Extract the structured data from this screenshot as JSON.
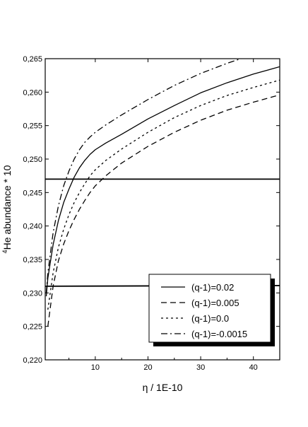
{
  "chart_data": {
    "type": "line",
    "xlabel": "η / 1E-10",
    "ylabel_sup": "4",
    "ylabel": "He abundance * 10",
    "xlim": [
      0.5,
      45
    ],
    "ylim": [
      0.22,
      0.265
    ],
    "xticks": [
      10,
      20,
      30,
      40
    ],
    "xtick_labels": [
      "10",
      "20",
      "30",
      "40"
    ],
    "yticks": [
      0.22,
      0.225,
      0.23,
      0.235,
      0.24,
      0.245,
      0.25,
      0.255,
      0.26,
      0.265
    ],
    "ytick_labels": [
      "0,220",
      "0,225",
      "0,230",
      "0,235",
      "0,240",
      "0,245",
      "0,250",
      "0,255",
      "0,260",
      "0,265"
    ],
    "grid": false,
    "legend_position": "bottom-right",
    "series": [
      {
        "name": "(q-1)=0.02",
        "style": "solid",
        "x": [
          0.7,
          1,
          2,
          3,
          4,
          5,
          6,
          7,
          8,
          9,
          10,
          12,
          15,
          20,
          25,
          30,
          35,
          40,
          45
        ],
        "y": [
          0.2295,
          0.2322,
          0.2372,
          0.2408,
          0.2435,
          0.2455,
          0.2473,
          0.2487,
          0.2498,
          0.2507,
          0.2514,
          0.2524,
          0.2537,
          0.256,
          0.258,
          0.2599,
          0.2614,
          0.2627,
          0.2638
        ]
      },
      {
        "name": "(q-1)=0.005",
        "style": "dashed",
        "x": [
          1,
          2,
          3,
          4,
          5,
          6,
          7,
          8,
          9,
          10,
          12,
          15,
          20,
          25,
          30,
          35,
          40,
          45
        ],
        "y": [
          0.225,
          0.231,
          0.2348,
          0.2373,
          0.2393,
          0.241,
          0.2425,
          0.2438,
          0.245,
          0.246,
          0.2475,
          0.2494,
          0.2519,
          0.254,
          0.2558,
          0.2573,
          0.2585,
          0.2596
        ]
      },
      {
        "name": "(q-1)=0.0",
        "style": "dotted",
        "x": [
          1,
          2,
          3,
          4,
          5,
          6,
          7,
          8,
          9,
          10,
          12,
          15,
          20,
          25,
          30,
          35,
          40,
          45
        ],
        "y": [
          0.2275,
          0.233,
          0.2368,
          0.2395,
          0.2417,
          0.2435,
          0.245,
          0.2463,
          0.2475,
          0.2484,
          0.2498,
          0.2515,
          0.254,
          0.2562,
          0.258,
          0.2595,
          0.2607,
          0.2618
        ]
      },
      {
        "name": "(q-1)=-0.0015",
        "style": "dashdot",
        "x": [
          0.7,
          1,
          2,
          3,
          4,
          5,
          6,
          7,
          8,
          9,
          10,
          12,
          15,
          20,
          25,
          30,
          35,
          38,
          40
        ],
        "y": [
          0.23,
          0.233,
          0.239,
          0.243,
          0.246,
          0.2482,
          0.25,
          0.2514,
          0.2525,
          0.2533,
          0.254,
          0.2551,
          0.2566,
          0.2589,
          0.261,
          0.2628,
          0.2643,
          0.2651,
          0.2655
        ]
      },
      {
        "name": "",
        "style": "solid-thick",
        "x": [
          0.5,
          45
        ],
        "y": [
          0.247,
          0.247
        ]
      },
      {
        "name": "",
        "style": "solid-thick",
        "x": [
          0.5,
          45
        ],
        "y": [
          0.231,
          0.2311
        ]
      }
    ]
  }
}
